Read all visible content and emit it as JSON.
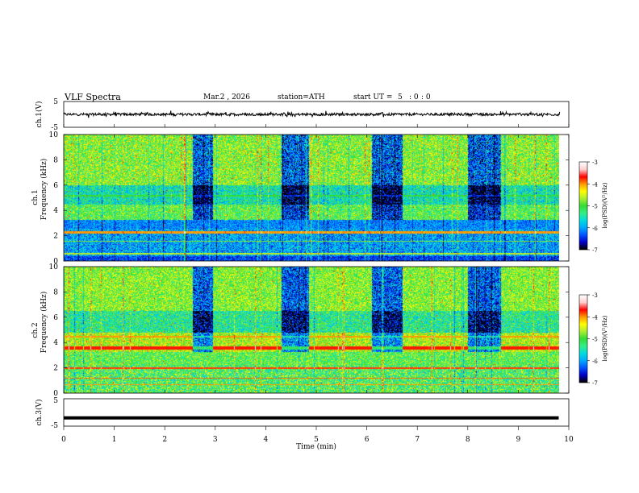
{
  "header": {
    "title": "VLF  Spectra",
    "date": "Mar.2  , 2026",
    "station": "station=ATH",
    "start_label": "start  UT  =",
    "start_h": "5",
    "start_m": ": 0",
    "start_s": ": 0"
  },
  "chart_data": [
    {
      "type": "line",
      "name": "ch1-waveform",
      "ylabel": "ch.1(V)",
      "ylim": [
        -5,
        5
      ],
      "ytick_labels": [
        "5",
        "-5"
      ],
      "xlim": [
        0,
        10
      ],
      "baseline": 0,
      "amplitude": "small noisy fluctuation around 0 V"
    },
    {
      "type": "heatmap",
      "name": "ch1-spectrogram",
      "ylabel_top": "ch.1",
      "ylabel": "Frequency  (kHz)",
      "ylim": [
        0,
        10
      ],
      "ytick_labels": [
        "0",
        "2",
        "4",
        "6",
        "8",
        "10"
      ],
      "xlim": [
        0,
        10
      ],
      "data_end_min": 9.8,
      "dark_bursts_min": [
        [
          2.55,
          2.95
        ],
        [
          4.3,
          4.85
        ],
        [
          6.1,
          6.7
        ],
        [
          8.0,
          8.65
        ]
      ],
      "colorbar": {
        "label": "log(PSD)(V²/Hz)",
        "range": [
          -7,
          -3
        ],
        "tick_labels": [
          "-3",
          "-4",
          "-5",
          "-6",
          "-7"
        ]
      }
    },
    {
      "type": "heatmap",
      "name": "ch2-spectrogram",
      "ylabel_top": "ch.2",
      "ylabel": "Frequency  (kHz)",
      "ylim": [
        0,
        10
      ],
      "ytick_labels": [
        "0",
        "2",
        "4",
        "6",
        "8",
        "10"
      ],
      "xlim": [
        0,
        10
      ],
      "data_end_min": 9.8,
      "dark_bursts_min": [
        [
          2.55,
          2.95
        ],
        [
          4.3,
          4.85
        ],
        [
          6.1,
          6.7
        ],
        [
          8.0,
          8.65
        ]
      ],
      "colorbar": {
        "label": "log(PSD)(V²/Hz)",
        "range": [
          -7,
          -3
        ],
        "tick_labels": [
          "-3",
          "-4",
          "-5",
          "-6",
          "-7"
        ]
      }
    },
    {
      "type": "line",
      "name": "ch3-waveform",
      "ylabel": "ch.3(V)",
      "ylim": [
        -5,
        5
      ],
      "ytick_labels": [
        "5",
        "-5"
      ],
      "xlim": [
        0,
        10
      ],
      "baseline": -2
    }
  ],
  "xaxis": {
    "label": "Time  (min)",
    "tick_labels": [
      "0",
      "1",
      "2",
      "3",
      "4",
      "5",
      "6",
      "7",
      "8",
      "9",
      "10"
    ]
  },
  "colors": {
    "colormap": [
      "#000000",
      "#0000cc",
      "#0055ff",
      "#00aaff",
      "#00dddd",
      "#33ee88",
      "#33dd33",
      "#aaee33",
      "#ffff00",
      "#ff9900",
      "#ff0000",
      "#ffcccc",
      "#ffffff"
    ]
  }
}
